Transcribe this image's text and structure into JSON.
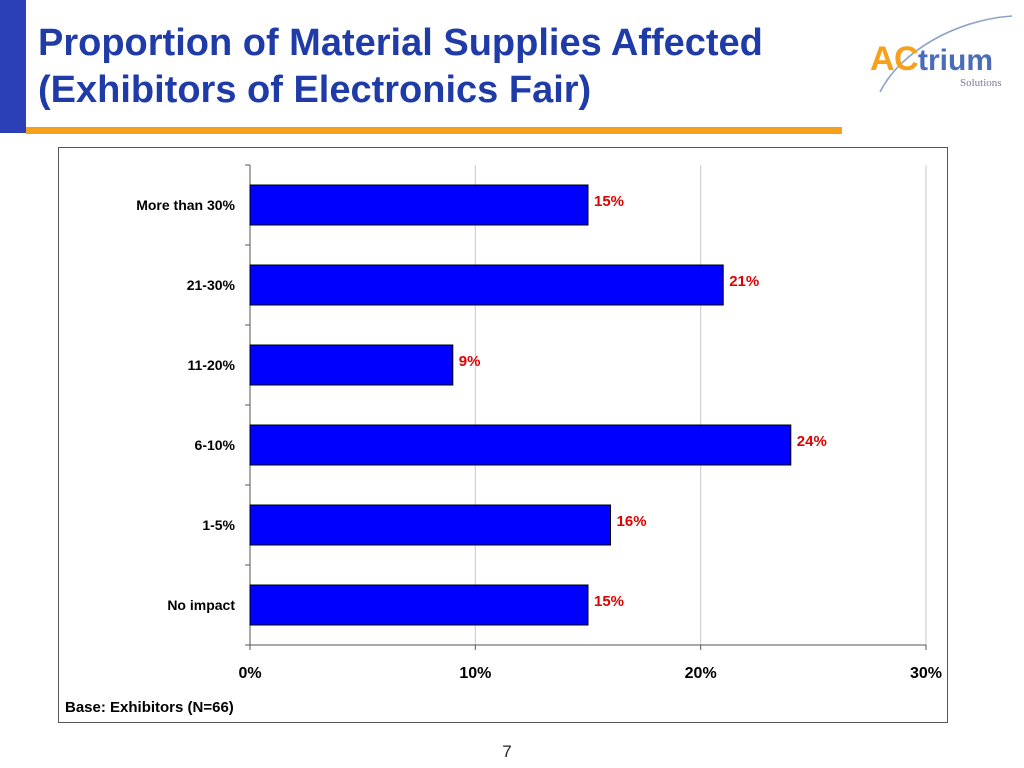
{
  "title": {
    "line1": "Proportion of Material Supplies Affected",
    "line2": "(Exhibitors of Electronics Fair)"
  },
  "logo": {
    "text_a": "A",
    "text_c": "C",
    "text_rest": "trium",
    "subtitle": "Solutions",
    "colors": {
      "orange": "#f5a11c",
      "blue": "#4b6cb7",
      "grey": "#7b7b9b"
    }
  },
  "colors": {
    "title": "#1f3ba8",
    "left_bar": "#2b3fb7",
    "rule": "#f5a11c",
    "bar_fill": "#0000ff",
    "bar_stroke": "#000000",
    "data_label": "#e00000",
    "grid": "#c8c8c8"
  },
  "chart_data": {
    "type": "bar",
    "orientation": "horizontal",
    "categories": [
      "More than 30%",
      "21-30%",
      "11-20%",
      "6-10%",
      "1-5%",
      "No impact"
    ],
    "values": [
      15,
      21,
      9,
      24,
      16,
      15
    ],
    "data_labels": [
      "15%",
      "21%",
      "9%",
      "24%",
      "16%",
      "15%"
    ],
    "xlim": [
      0,
      30
    ],
    "xticks": [
      0,
      10,
      20,
      30
    ],
    "xtick_labels": [
      "0%",
      "10%",
      "20%",
      "30%"
    ],
    "grid": true,
    "legend": false,
    "title": "",
    "xlabel": "",
    "ylabel": "",
    "note": "Base: Exhibitors (N=66)"
  },
  "page_number": "7"
}
